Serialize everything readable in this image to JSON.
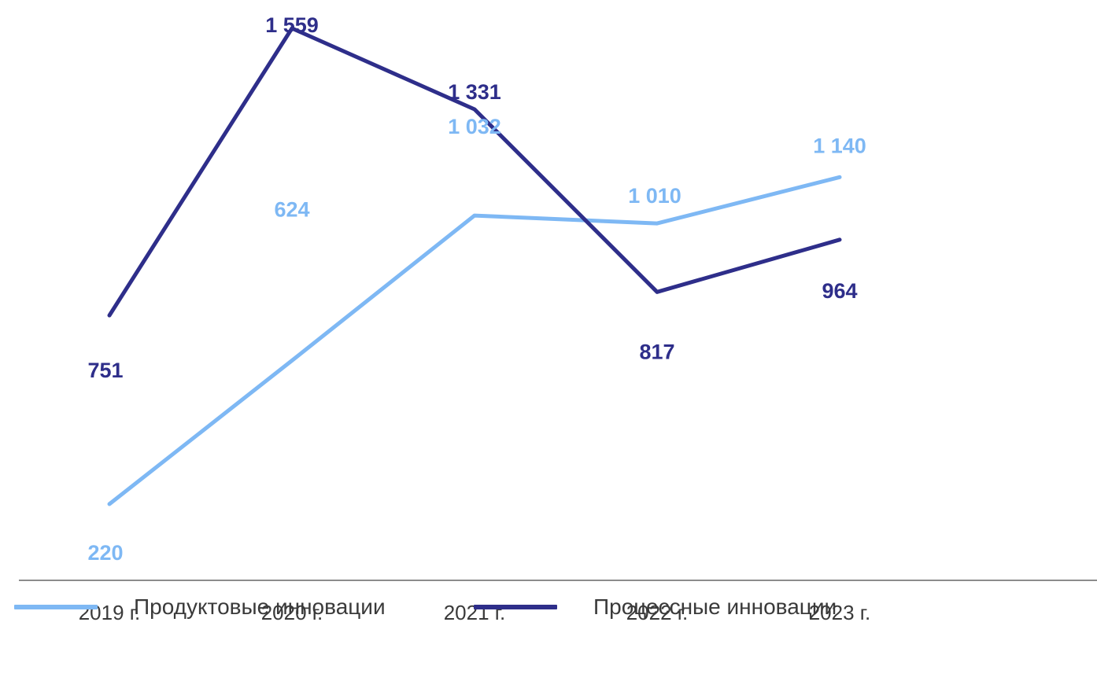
{
  "chart_data": {
    "type": "line",
    "categories": [
      "2019 г.",
      "2020 г.",
      "2021 г.",
      "2022 г.",
      "2023 г."
    ],
    "series": [
      {
        "name": "Продуктовые инновации",
        "color": "#7eb8f4",
        "values": [
          220,
          624,
          1032,
          1010,
          1140
        ],
        "labels": [
          "220",
          "624",
          "1 032",
          "1 010",
          "1 140"
        ]
      },
      {
        "name": "Процессные инновации",
        "color": "#2e2e8a",
        "values": [
          751,
          1559,
          1331,
          817,
          964
        ],
        "labels": [
          "751",
          "1 559",
          "1 331",
          "817",
          "964"
        ]
      }
    ],
    "ylim": [
      0,
      1600
    ],
    "grid": false,
    "legend": "bottom",
    "axis_color": "#8c8c8c",
    "tick_color": "#3a3a3a"
  }
}
